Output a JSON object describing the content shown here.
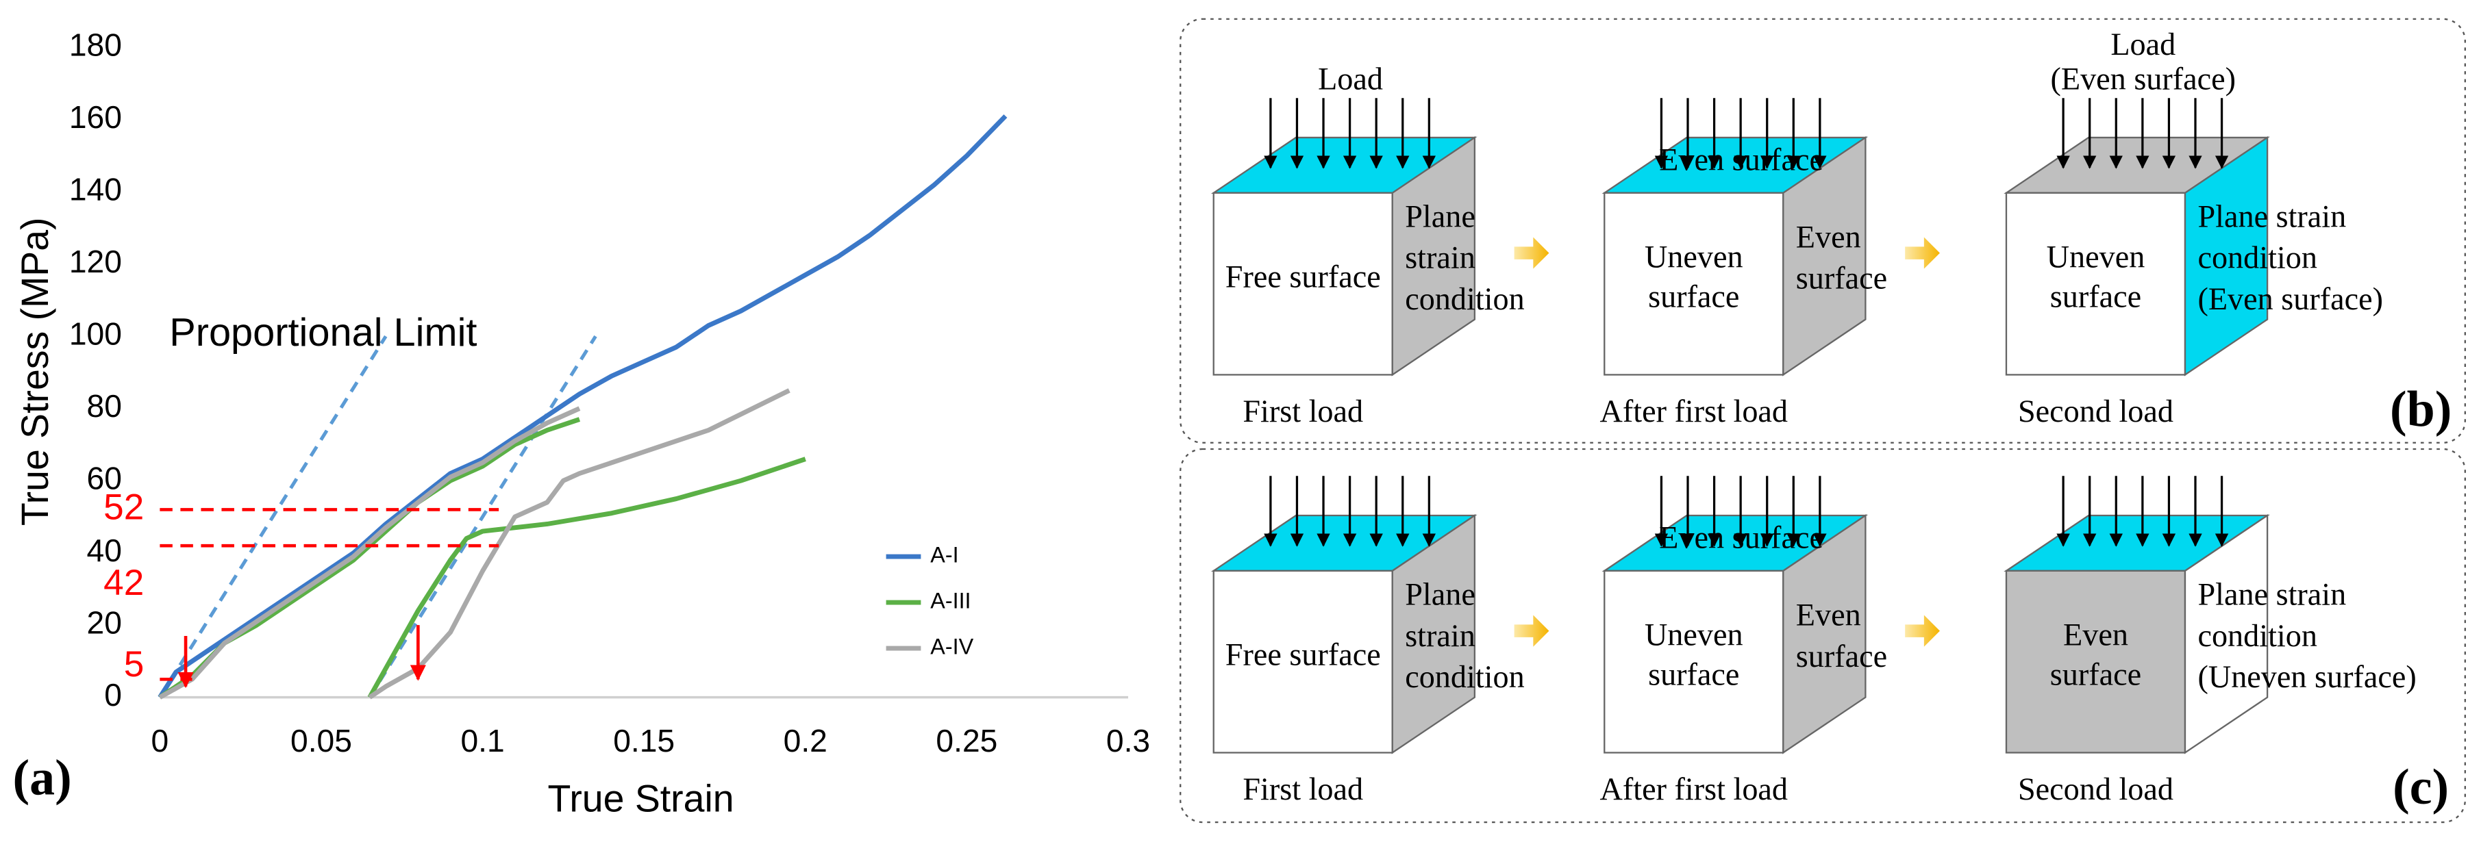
{
  "chart_data": {
    "type": "line",
    "panel_label": "(a)",
    "xlabel": "True Strain",
    "ylabel": "True Stress (MPa)",
    "annotation": "Proportional Limit",
    "legend": "lower right",
    "xlim": [
      0,
      0.3
    ],
    "xticks": [
      0,
      0.05,
      0.1,
      0.15,
      0.2,
      0.25,
      0.3
    ],
    "ylim": [
      0,
      180
    ],
    "yticks": [
      0,
      20,
      40,
      60,
      80,
      100,
      120,
      140,
      160,
      180
    ],
    "series": [
      {
        "name": "A-I",
        "color": "#3b78c8",
        "x": [
          0,
          0.005,
          0.01,
          0.02,
          0.03,
          0.04,
          0.05,
          0.06,
          0.07,
          0.08,
          0.09,
          0.1,
          0.11,
          0.12,
          0.13,
          0.14,
          0.15,
          0.16,
          0.17,
          0.18,
          0.19,
          0.2,
          0.21,
          0.22,
          0.23,
          0.24,
          0.25,
          0.262
        ],
        "values": [
          0,
          7,
          10,
          16,
          22,
          28,
          34,
          40,
          48,
          55,
          62,
          66,
          72,
          78,
          84,
          89,
          93,
          97,
          103,
          107,
          112,
          117,
          122,
          128,
          135,
          142,
          150,
          161
        ]
      },
      {
        "name": "A-III",
        "color": "#5bb046",
        "x": [
          0,
          0.01,
          0.02,
          0.03,
          0.04,
          0.05,
          0.06,
          0.07,
          0.08,
          0.09,
          0.1,
          0.11,
          0.12,
          0.13,
          null,
          0.065,
          0.07,
          0.08,
          0.09,
          0.095,
          0.1,
          0.12,
          0.14,
          0.16,
          0.18,
          0.2
        ],
        "values": [
          0,
          6,
          15,
          20,
          26,
          32,
          38,
          46,
          54,
          60,
          64,
          70,
          74,
          77,
          null,
          0,
          8,
          24,
          38,
          44,
          46,
          48,
          51,
          55,
          60,
          66
        ]
      },
      {
        "name": "A-IV",
        "color": "#a9a9a9",
        "x": [
          0,
          0.01,
          0.02,
          0.03,
          0.04,
          0.05,
          0.06,
          0.07,
          0.08,
          0.09,
          0.1,
          0.11,
          0.12,
          0.13,
          null,
          0.065,
          0.07,
          0.08,
          0.09,
          0.1,
          0.11,
          0.12,
          0.125,
          0.13,
          0.15,
          0.17,
          0.195
        ],
        "values": [
          0,
          5,
          15,
          21,
          27,
          33,
          39,
          47,
          54,
          61,
          65,
          71,
          76,
          80,
          null,
          0,
          3,
          8,
          18,
          35,
          50,
          54,
          60,
          62,
          68,
          74,
          85
        ]
      }
    ],
    "proportional_lines": {
      "color": "#5b9bd5",
      "lines": [
        {
          "x": [
            0,
            0.07
          ],
          "values": [
            0,
            100
          ]
        },
        {
          "x": [
            0.065,
            0.135
          ],
          "values": [
            0,
            100
          ]
        }
      ]
    },
    "marked_stresses": [
      52,
      42,
      5
    ],
    "marked_stress_x_end": [
      0.105,
      0.105,
      0.01
    ],
    "marker_color": "#ff0000",
    "arrows": [
      {
        "x": 0.008,
        "values": [
          17,
          3
        ]
      },
      {
        "x": 0.08,
        "values": [
          20,
          5
        ]
      }
    ]
  },
  "diagrams": [
    {
      "label": "(b)",
      "stages": [
        {
          "caption": "First load",
          "load": [
            "Load"
          ],
          "front": [
            "Free surface"
          ],
          "side": [
            "Plane",
            "strain",
            "condition"
          ],
          "colors": [
            "#00d8f0",
            "#ffffff",
            "#bfbfbf"
          ]
        },
        {
          "caption": "After first load",
          "top": [
            "Even surface"
          ],
          "front": [
            "Uneven",
            "surface"
          ],
          "side": [
            "Even",
            "surface"
          ],
          "colors": [
            "#00d8f0",
            "#ffffff",
            "#bfbfbf"
          ]
        },
        {
          "caption": "Second load",
          "load": [
            "Load",
            "(Even surface)"
          ],
          "front": [
            "Uneven",
            "surface"
          ],
          "side": [
            "Plane strain",
            "condition",
            "(Even surface)"
          ],
          "colors": [
            "#bfbfbf",
            "#ffffff",
            "#00d8f0"
          ]
        }
      ]
    },
    {
      "label": "(c)",
      "stages": [
        {
          "caption": "First load",
          "front": [
            "Free surface"
          ],
          "side": [
            "Plane",
            "strain",
            "condition"
          ],
          "colors": [
            "#00d8f0",
            "#ffffff",
            "#bfbfbf"
          ]
        },
        {
          "caption": "After first load",
          "top": [
            "Even surface"
          ],
          "front": [
            "Uneven",
            "surface"
          ],
          "side": [
            "Even",
            "surface"
          ],
          "colors": [
            "#00d8f0",
            "#ffffff",
            "#bfbfbf"
          ]
        },
        {
          "caption": "Second load",
          "front": [
            "Even",
            "surface"
          ],
          "side": [
            "Plane strain",
            "condition",
            "(Uneven surface)"
          ],
          "colors": [
            "#00d8f0",
            "#bfbfbf",
            "#ffffff"
          ]
        }
      ]
    }
  ]
}
